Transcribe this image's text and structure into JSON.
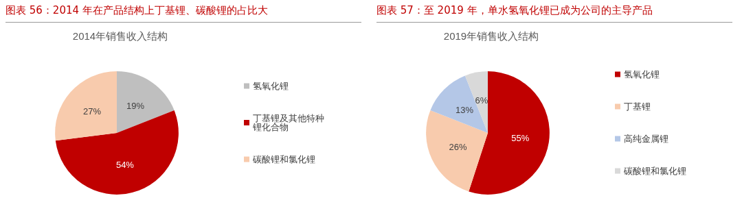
{
  "chart_data": [
    {
      "type": "pie",
      "title": "图表 56：2014 年在产品结构上丁基锂、碳酸锂的占比大",
      "subtitle": "2014年销售收入结构",
      "categories": [
        "氢氧化锂",
        "丁基锂及其他特种锂化合物",
        "碳酸锂和氯化锂"
      ],
      "values": [
        19,
        54,
        27
      ],
      "value_labels": [
        "19%",
        "54%",
        "27%"
      ],
      "colors": [
        "#bfbfbf",
        "#c00000",
        "#f8cbad"
      ],
      "legend": "right"
    },
    {
      "type": "pie",
      "title": "图表 57：至 2019 年，单水氢氧化锂已成为公司的主导产品",
      "subtitle": "2019年销售收入结构",
      "categories": [
        "氢氧化锂",
        "丁基锂",
        "高纯金属锂",
        "碳酸锂和氯化锂"
      ],
      "values": [
        55,
        26,
        13,
        6
      ],
      "value_labels": [
        "55%",
        "26%",
        "13%",
        "6%"
      ],
      "colors": [
        "#c00000",
        "#f8cbad",
        "#b4c7e7",
        "#d9d9d9"
      ],
      "legend": "right"
    }
  ]
}
